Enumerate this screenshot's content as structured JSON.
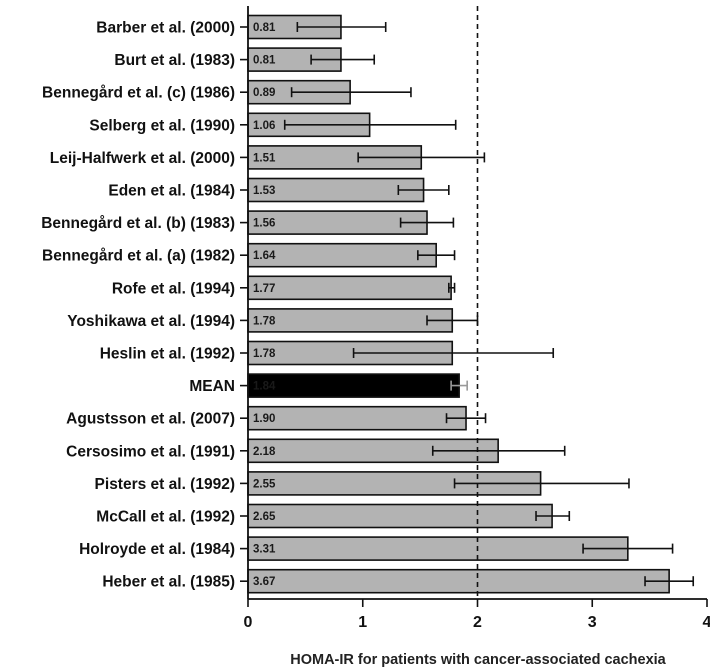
{
  "chart_data": {
    "type": "bar",
    "orientation": "horizontal",
    "title": "",
    "xlabel": "HOMA-IR for patients with cancer-associated cachexia",
    "ylabel": "",
    "xlim": [
      0,
      4
    ],
    "xticks": [
      "0",
      "1",
      "2",
      "3",
      "4"
    ],
    "reference_line": {
      "x": 2,
      "style": "dashed"
    },
    "grid": false,
    "categories": [
      "Barber et al. (2000)",
      "Burt et al. (1983)",
      "Bennegård et al. (c) (1986)",
      "Selberg et al. (1990)",
      "Leij-Halfwerk et al. (2000)",
      "Eden et al. (1984)",
      "Bennegård et al. (b) (1983)",
      "Bennegård et al. (a) (1982)",
      "Rofe et al. (1994)",
      "Yoshikawa et al. (1994)",
      "Heslin et al. (1992)",
      "MEAN",
      "Agustsson et al. (2007)",
      "Cersosimo et al. (1991)",
      "Pisters et al. (1992)",
      "McCall et al. (1992)",
      "Holroyde et al. (1984)",
      "Heber et al. (1985)"
    ],
    "values": [
      0.81,
      0.81,
      0.89,
      1.06,
      1.51,
      1.53,
      1.56,
      1.64,
      1.77,
      1.78,
      1.78,
      1.84,
      1.9,
      2.18,
      2.55,
      2.65,
      3.31,
      3.67
    ],
    "value_labels": [
      "0.81",
      "0.81",
      "0.89",
      "1.06",
      "1.51",
      "1.53",
      "1.56",
      "1.64",
      "1.77",
      "1.78",
      "1.78",
      "1.84",
      "1.90",
      "2.18",
      "2.55",
      "2.65",
      "3.31",
      "3.67"
    ],
    "error_low": [
      0.43,
      0.55,
      0.38,
      0.32,
      0.96,
      1.31,
      1.33,
      1.48,
      1.75,
      1.56,
      0.92,
      1.77,
      1.73,
      1.61,
      1.8,
      2.51,
      2.92,
      3.46
    ],
    "error_high": [
      1.2,
      1.1,
      1.42,
      1.81,
      2.06,
      1.75,
      1.79,
      1.8,
      1.8,
      2.0,
      2.66,
      1.91,
      2.07,
      2.76,
      3.32,
      2.8,
      3.7,
      3.88
    ],
    "highlight_index": 11,
    "colors": {
      "bar_fill": "#b3b3b3",
      "bar_stroke": "#111111",
      "mean_fill": "#000000",
      "mean_label": "#ffffff",
      "mean_error": "#9a9a9a",
      "error": "#111111",
      "axis": "#111111"
    }
  }
}
